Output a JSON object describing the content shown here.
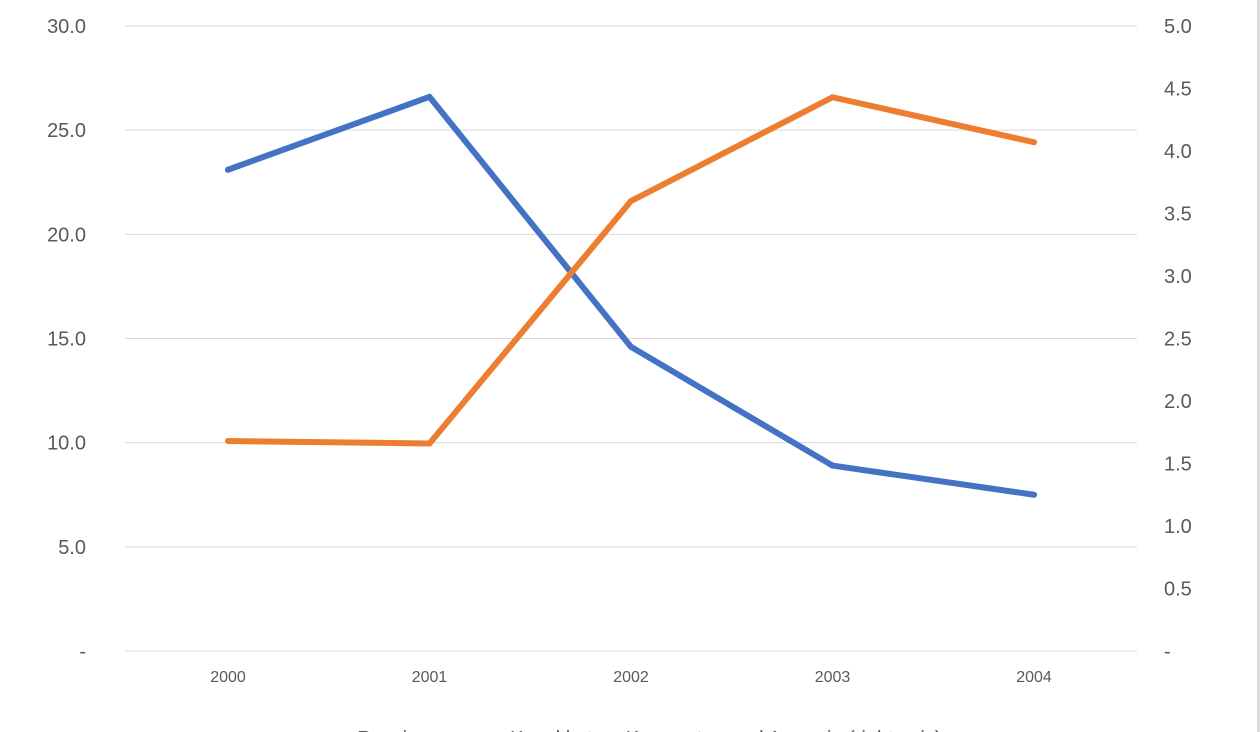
{
  "chart_data": {
    "type": "line",
    "categories": [
      "2000",
      "2001",
      "2002",
      "2003",
      "2004"
    ],
    "y_left": {
      "ticks": [
        "-",
        "5.0",
        "10.0",
        "15.0",
        "20.0",
        "25.0",
        "30.0"
      ],
      "ylim": [
        0,
        30
      ]
    },
    "y_right": {
      "ticks": [
        "-",
        "0.5",
        "1.0",
        "1.5",
        "2.0",
        "2.5",
        "3.0",
        "3.5",
        "4.0",
        "4.5",
        "5.0"
      ],
      "ylim": [
        0,
        5
      ]
    },
    "series": [
      {
        "name": "Russia",
        "axis": "left",
        "color": "#4472c4",
        "values": [
          23.1,
          26.6,
          14.6,
          8.9,
          7.5
        ]
      },
      {
        "name": "Kazakhstan, Kyrgyzstan and Armenia (right axis)",
        "axis": "right",
        "color": "#ed7d31",
        "values": [
          1.68,
          1.66,
          3.6,
          4.43,
          4.07
        ]
      }
    ],
    "legend_position": "bottom",
    "grid": true
  }
}
